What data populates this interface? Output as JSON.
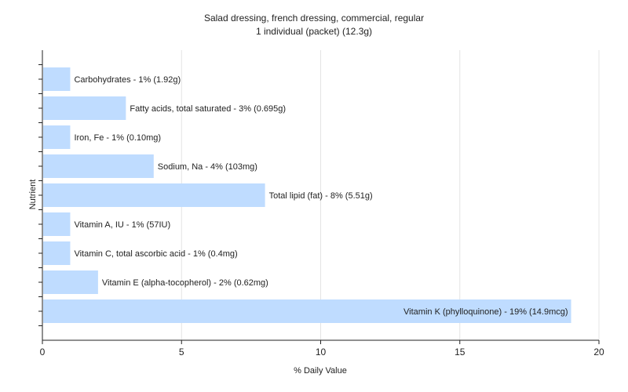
{
  "chart_data": {
    "type": "bar",
    "orientation": "horizontal",
    "title": "Salad dressing, french dressing, commercial, regular",
    "subtitle": "1 individual (packet) (12.3g)",
    "xlabel": "% Daily Value",
    "ylabel": "Nutrient",
    "xlim": [
      0,
      20
    ],
    "xticks": [
      0,
      5,
      10,
      15,
      20
    ],
    "grid": true,
    "bar_color": "#bfdcff",
    "categories": [
      "Carbohydrates",
      "Fatty acids, total saturated",
      "Iron, Fe",
      "Sodium, Na",
      "Total lipid (fat)",
      "Vitamin A, IU",
      "Vitamin C, total ascorbic acid",
      "Vitamin E (alpha-tocopherol)",
      "Vitamin K (phylloquinone)"
    ],
    "values": [
      1,
      3,
      1,
      4,
      8,
      1,
      1,
      2,
      19
    ],
    "labels": [
      "Carbohydrates - 1% (1.92g)",
      "Fatty acids, total saturated - 3% (0.695g)",
      "Iron, Fe - 1% (0.10mg)",
      "Sodium, Na - 4% (103mg)",
      "Total lipid (fat) - 8% (5.51g)",
      "Vitamin A, IU - 1% (57IU)",
      "Vitamin C, total ascorbic acid - 1% (0.4mg)",
      "Vitamin E (alpha-tocopherol) - 2% (0.62mg)",
      "Vitamin K (phylloquinone) - 19% (14.9mcg)"
    ]
  }
}
